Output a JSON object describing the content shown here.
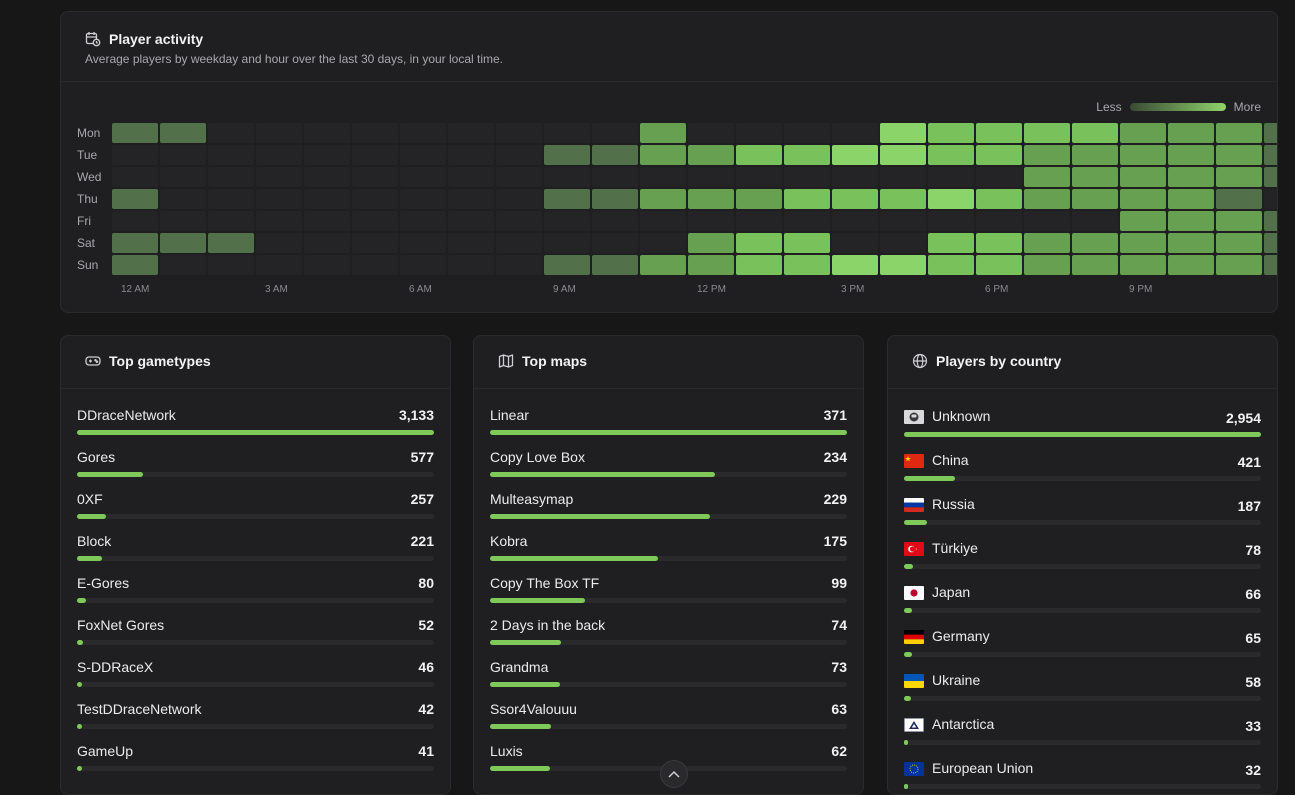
{
  "activity": {
    "title": "Player activity",
    "subtitle": "Average players by weekday and hour over the last 30 days, in your local time.",
    "legend_less": "Less",
    "legend_more": "More",
    "days": [
      "Mon",
      "Tue",
      "Wed",
      "Thu",
      "Fri",
      "Sat",
      "Sun"
    ],
    "hour_labels": [
      "12 AM",
      "3 AM",
      "6 AM",
      "9 AM",
      "12 PM",
      "3 PM",
      "6 PM",
      "9 PM"
    ],
    "levels": [
      [
        2,
        2,
        0,
        0,
        0,
        0,
        0,
        0,
        0,
        0,
        0,
        3,
        0,
        0,
        0,
        0,
        5,
        4,
        4,
        4,
        4,
        3,
        3,
        3,
        2
      ],
      [
        0,
        0,
        0,
        0,
        0,
        0,
        0,
        0,
        0,
        2,
        2,
        3,
        3,
        4,
        4,
        5,
        5,
        4,
        4,
        3,
        3,
        3,
        3,
        3,
        2
      ],
      [
        0,
        0,
        0,
        0,
        0,
        0,
        0,
        0,
        0,
        0,
        0,
        0,
        0,
        0,
        0,
        0,
        0,
        0,
        0,
        3,
        3,
        3,
        3,
        3,
        2
      ],
      [
        2,
        0,
        0,
        0,
        0,
        0,
        0,
        0,
        0,
        2,
        2,
        3,
        3,
        3,
        4,
        4,
        4,
        5,
        4,
        3,
        3,
        3,
        3,
        2,
        0
      ],
      [
        0,
        0,
        0,
        0,
        0,
        0,
        0,
        0,
        0,
        0,
        0,
        0,
        0,
        0,
        0,
        0,
        0,
        0,
        0,
        0,
        0,
        3,
        3,
        3,
        2
      ],
      [
        2,
        2,
        2,
        0,
        0,
        0,
        0,
        0,
        0,
        0,
        0,
        0,
        3,
        4,
        4,
        0,
        0,
        4,
        4,
        3,
        3,
        3,
        3,
        3,
        2
      ],
      [
        2,
        0,
        0,
        0,
        0,
        0,
        0,
        0,
        0,
        2,
        2,
        3,
        3,
        4,
        4,
        5,
        5,
        4,
        4,
        3,
        3,
        3,
        3,
        3,
        2
      ]
    ],
    "colors": [
      "#242426",
      "#3b4a36",
      "#52704a",
      "#66a050",
      "#79c15b",
      "#8ad469"
    ]
  },
  "gametypes": {
    "title": "Top gametypes",
    "items": [
      {
        "name": "DDraceNetwork",
        "value": "3,133",
        "n": 3133
      },
      {
        "name": "Gores",
        "value": "577",
        "n": 577
      },
      {
        "name": "0XF",
        "value": "257",
        "n": 257
      },
      {
        "name": "Block",
        "value": "221",
        "n": 221
      },
      {
        "name": "E-Gores",
        "value": "80",
        "n": 80
      },
      {
        "name": "FoxNet Gores",
        "value": "52",
        "n": 52
      },
      {
        "name": "S-DDRaceX",
        "value": "46",
        "n": 46
      },
      {
        "name": "TestDDraceNetwork",
        "value": "42",
        "n": 42
      },
      {
        "name": "GameUp",
        "value": "41",
        "n": 41
      }
    ]
  },
  "maps": {
    "title": "Top maps",
    "items": [
      {
        "name": "Linear",
        "value": "371",
        "n": 371
      },
      {
        "name": "Copy Love Box",
        "value": "234",
        "n": 234
      },
      {
        "name": "Multeasymap",
        "value": "229",
        "n": 229
      },
      {
        "name": "Kobra",
        "value": "175",
        "n": 175
      },
      {
        "name": "Copy The Box TF",
        "value": "99",
        "n": 99
      },
      {
        "name": "2 Days in the back",
        "value": "74",
        "n": 74
      },
      {
        "name": "Grandma",
        "value": "73",
        "n": 73
      },
      {
        "name": "Ssor4Valouuu",
        "value": "63",
        "n": 63
      },
      {
        "name": "Luxis",
        "value": "62",
        "n": 62
      }
    ]
  },
  "countries": {
    "title": "Players by country",
    "items": [
      {
        "name": "Unknown",
        "value": "2,954",
        "n": 2954,
        "flag": "unknown"
      },
      {
        "name": "China",
        "value": "421",
        "n": 421,
        "flag": "cn"
      },
      {
        "name": "Russia",
        "value": "187",
        "n": 187,
        "flag": "ru"
      },
      {
        "name": "Türkiye",
        "value": "78",
        "n": 78,
        "flag": "tr"
      },
      {
        "name": "Japan",
        "value": "66",
        "n": 66,
        "flag": "jp"
      },
      {
        "name": "Germany",
        "value": "65",
        "n": 65,
        "flag": "de"
      },
      {
        "name": "Ukraine",
        "value": "58",
        "n": 58,
        "flag": "ua"
      },
      {
        "name": "Antarctica",
        "value": "33",
        "n": 33,
        "flag": "aq"
      },
      {
        "name": "European Union",
        "value": "32",
        "n": 32,
        "flag": "eu"
      }
    ]
  }
}
